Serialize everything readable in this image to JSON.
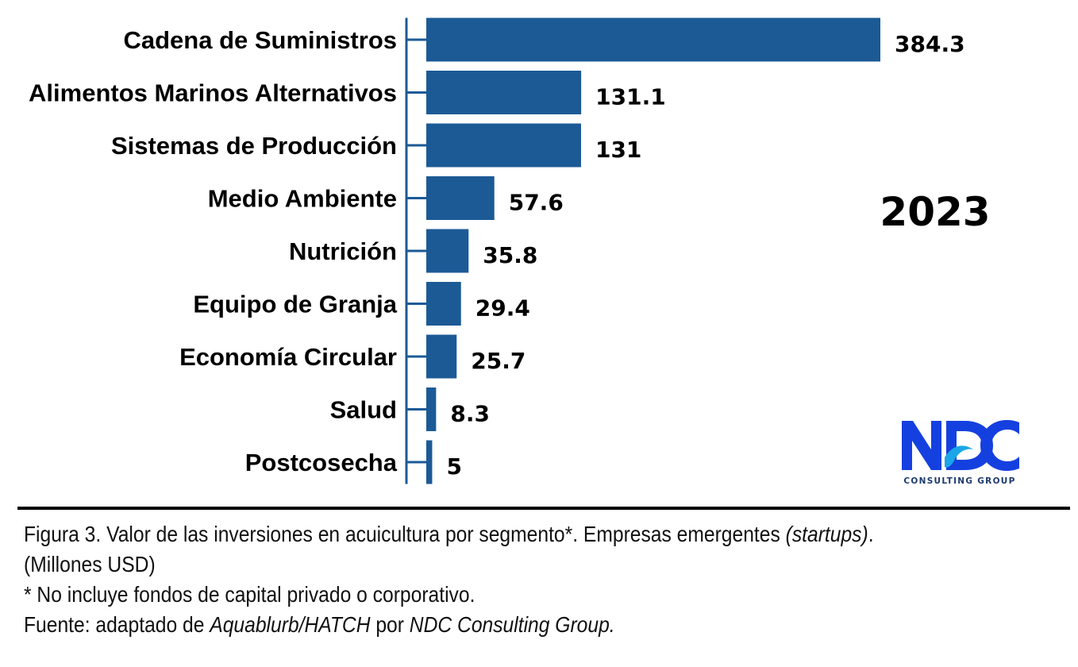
{
  "chart_data": {
    "type": "bar",
    "orientation": "horizontal",
    "title": "",
    "categories": [
      "Cadena de Suministros",
      "Alimentos Marinos Alternativos",
      "Sistemas de Producción",
      "Medio Ambiente",
      "Nutrición",
      "Equipo de Granja",
      "Economía Circular",
      "Salud",
      "Postcosecha"
    ],
    "values": [
      384.3,
      131.1,
      131,
      57.6,
      35.8,
      29.4,
      25.7,
      8.3,
      5
    ],
    "value_labels": [
      "384.3",
      "131.1",
      "131",
      "57.6",
      "35.8",
      "29.4",
      "25.7",
      "8.3",
      "5"
    ],
    "annotation": "2023",
    "xlabel": "",
    "ylabel": "",
    "xlim": [
      0,
      384.3
    ],
    "bar_color": "#1c5a96",
    "grid": false,
    "legend": "none"
  },
  "logo": {
    "text": "NDC",
    "subtitle": "CONSULTING GROUP",
    "colors": {
      "primary": "#1540e0",
      "secondary": "#1aa6e8",
      "subtitle": "#1d3a6e"
    }
  },
  "caption": {
    "figure_label": "Figura 3.",
    "line1_text": " Valor de las inversiones en acuicultura por segmento*. Empresas emergentes ",
    "line1_italic": "(startups)",
    "line1_end": ".",
    "line2": "(Millones USD)",
    "line3": "* No incluye fondos de capital privado o corporativo.",
    "line4_prefix": "Fuente: adaptado de ",
    "line4_source": "Aquablurb/HATCH",
    "line4_mid": " por ",
    "line4_author": "NDC Consulting Group."
  }
}
